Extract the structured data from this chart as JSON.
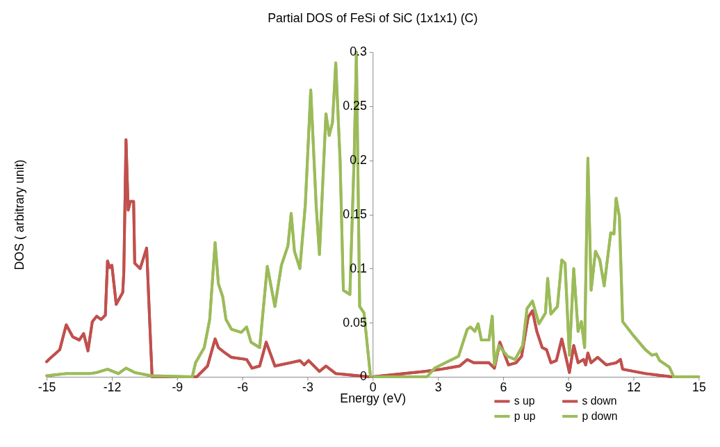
{
  "chart_data": {
    "type": "line",
    "title": "Partial DOS of FeSi of SiC (1x1x1) (C)",
    "xlabel": "Energy (eV)",
    "ylabel": "DOS ( arbitrary unit)",
    "xlim": [
      -15,
      15
    ],
    "xticks": [
      -15,
      -12,
      -9,
      -6,
      -3,
      0,
      3,
      6,
      9,
      12,
      15
    ],
    "ylim": [
      0,
      0.3
    ],
    "yticks": [
      0,
      0.05,
      0.1,
      0.15,
      0.2,
      0.25,
      0.3
    ],
    "grid": false,
    "legend": "bottom right",
    "marker": "none",
    "line_style": "solid",
    "series": [
      {
        "name": "s up",
        "color": "#c0504d",
        "x": [
          -15,
          -14.9,
          -14.4,
          -14.1,
          -13.8,
          -13.5,
          -13.3,
          -13.1,
          -12.9,
          -12.7,
          -12.5,
          -12.3,
          -12.2,
          -12.1,
          -12.0,
          -11.8,
          -11.5,
          -11.45,
          -11.35,
          -11.25,
          -11.15,
          -11.0,
          -10.95,
          -10.7,
          -10.4,
          -10.3,
          -10.15,
          -8.1,
          -7.6,
          -7.25,
          -7.1,
          -6.85,
          -6.5,
          -5.8,
          -5.55,
          -5.2,
          -4.9,
          -4.5,
          -3.8,
          -3.35,
          -3.15,
          -2.95,
          -2.45,
          -2.15,
          -1.7,
          -1.15,
          -0.2,
          0,
          2.4,
          3.15,
          4.0,
          4.35,
          4.65,
          5.05,
          5.35,
          5.6,
          5.85,
          6.25,
          6.6,
          6.85,
          7.15,
          7.35,
          7.55,
          7.8,
          8.0,
          8.2,
          8.45,
          8.7,
          9.05,
          9.25,
          9.45,
          9.7,
          9.8,
          9.9,
          10.05,
          10.35,
          10.75,
          11.2,
          11.4,
          11.5,
          12.55,
          13.75
        ],
        "values": [
          0.014,
          0.016,
          0.025,
          0.048,
          0.037,
          0.034,
          0.04,
          0.024,
          0.051,
          0.056,
          0.053,
          0.057,
          0.107,
          0.101,
          0.103,
          0.067,
          0.078,
          0.097,
          0.219,
          0.154,
          0.162,
          0.162,
          0.105,
          0.1,
          0.119,
          0.07,
          0,
          0,
          0.01,
          0.035,
          0.027,
          0.023,
          0.018,
          0.016,
          0.008,
          0.01,
          0.032,
          0.01,
          0.013,
          0.015,
          0.011,
          0.015,
          0.005,
          0.01,
          0.003,
          0.002,
          0,
          0,
          0.005,
          0.007,
          0.01,
          0.016,
          0.013,
          0.013,
          0.013,
          0.008,
          0.032,
          0.011,
          0.013,
          0.019,
          0.055,
          0.061,
          0.042,
          0.027,
          0.025,
          0.013,
          0.015,
          0.035,
          0.004,
          0.029,
          0.013,
          0.016,
          0.011,
          0.022,
          0.013,
          0.018,
          0.011,
          0.013,
          0.016,
          0.007,
          0.003,
          0
        ]
      },
      {
        "name": "s down",
        "color": "#c0504d",
        "x": [
          -15,
          -14.9,
          -14.4,
          -14.1,
          -13.8,
          -13.5,
          -13.3,
          -13.1,
          -12.9,
          -12.7,
          -12.5,
          -12.3,
          -12.2,
          -12.1,
          -12.0,
          -11.8,
          -11.5,
          -11.45,
          -11.35,
          -11.25,
          -11.15,
          -11.0,
          -10.95,
          -10.7,
          -10.4,
          -10.3,
          -10.15,
          -8.1,
          -7.6,
          -7.25,
          -7.1,
          -6.85,
          -6.5,
          -5.8,
          -5.55,
          -5.2,
          -4.9,
          -4.5,
          -3.8,
          -3.35,
          -3.15,
          -2.95,
          -2.45,
          -2.15,
          -1.7,
          -1.15,
          -0.2,
          0,
          2.4,
          3.15,
          4.0,
          4.35,
          4.65,
          5.05,
          5.35,
          5.6,
          5.85,
          6.25,
          6.6,
          6.85,
          7.15,
          7.35,
          7.55,
          7.8,
          8.0,
          8.2,
          8.45,
          8.7,
          9.05,
          9.25,
          9.45,
          9.7,
          9.8,
          9.9,
          10.05,
          10.35,
          10.75,
          11.2,
          11.4,
          11.5,
          12.55,
          13.75
        ],
        "values": [
          0.014,
          0.016,
          0.025,
          0.048,
          0.037,
          0.034,
          0.04,
          0.024,
          0.051,
          0.056,
          0.053,
          0.057,
          0.107,
          0.101,
          0.103,
          0.067,
          0.078,
          0.097,
          0.219,
          0.154,
          0.162,
          0.162,
          0.105,
          0.1,
          0.119,
          0.07,
          0,
          0,
          0.01,
          0.035,
          0.027,
          0.023,
          0.018,
          0.016,
          0.008,
          0.01,
          0.032,
          0.01,
          0.013,
          0.015,
          0.011,
          0.015,
          0.005,
          0.01,
          0.003,
          0.002,
          0,
          0,
          0.005,
          0.007,
          0.01,
          0.016,
          0.013,
          0.013,
          0.013,
          0.008,
          0.032,
          0.011,
          0.013,
          0.019,
          0.055,
          0.061,
          0.042,
          0.027,
          0.025,
          0.013,
          0.015,
          0.035,
          0.004,
          0.029,
          0.013,
          0.016,
          0.011,
          0.022,
          0.013,
          0.018,
          0.011,
          0.013,
          0.016,
          0.007,
          0.003,
          0
        ]
      },
      {
        "name": "p up",
        "color": "#9bbb59",
        "x": [
          -15,
          -14.1,
          -13.0,
          -12.7,
          -12.2,
          -11.7,
          -11.35,
          -10.95,
          -10.2,
          -8.3,
          -8.15,
          -7.75,
          -7.5,
          -7.25,
          -7.1,
          -6.9,
          -6.75,
          -6.5,
          -6.05,
          -5.8,
          -5.6,
          -5.2,
          -4.85,
          -4.5,
          -4.2,
          -3.9,
          -3.75,
          -3.6,
          -3.35,
          -3.1,
          -2.85,
          -2.6,
          -2.45,
          -2.15,
          -2.0,
          -1.85,
          -1.7,
          -1.5,
          -1.35,
          -1.05,
          -0.85,
          -0.75,
          -0.6,
          -0.4,
          -0.1,
          2.5,
          2.85,
          3.95,
          4.35,
          4.5,
          4.7,
          4.85,
          5.0,
          5.35,
          5.5,
          5.6,
          5.8,
          6.2,
          6.55,
          6.9,
          7.1,
          7.35,
          7.65,
          7.95,
          8.05,
          8.2,
          8.5,
          8.7,
          8.85,
          9.05,
          9.25,
          9.45,
          9.6,
          9.75,
          9.9,
          10.05,
          10.25,
          10.45,
          10.65,
          10.95,
          11.1,
          11.2,
          11.35,
          11.5,
          12.0,
          12.55,
          12.85,
          13.05,
          13.2,
          13.65,
          13.85,
          15
        ],
        "values": [
          0.001,
          0.003,
          0.003,
          0.004,
          0.007,
          0.003,
          0.008,
          0.004,
          0.001,
          0,
          0.013,
          0.027,
          0.053,
          0.124,
          0.086,
          0.074,
          0.053,
          0.044,
          0.041,
          0.046,
          0.032,
          0.027,
          0.102,
          0.065,
          0.103,
          0.121,
          0.151,
          0.116,
          0.1,
          0.159,
          0.265,
          0.158,
          0.113,
          0.243,
          0.223,
          0.235,
          0.29,
          0.2,
          0.08,
          0.076,
          0.205,
          0.3,
          0.065,
          0.059,
          0,
          0,
          0.008,
          0.019,
          0.044,
          0.046,
          0.042,
          0.049,
          0.034,
          0.034,
          0.056,
          0.011,
          0.029,
          0.019,
          0.016,
          0.029,
          0.063,
          0.07,
          0.049,
          0.059,
          0.091,
          0.058,
          0.065,
          0.108,
          0.105,
          0.02,
          0.1,
          0.042,
          0.051,
          0.027,
          0.202,
          0.08,
          0.116,
          0.108,
          0.084,
          0.133,
          0.132,
          0.165,
          0.148,
          0.051,
          0.038,
          0.025,
          0.02,
          0.021,
          0.015,
          0.009,
          0,
          0
        ]
      },
      {
        "name": "p down",
        "color": "#9bbb59",
        "x": [
          -15,
          -14.1,
          -13.0,
          -12.7,
          -12.2,
          -11.7,
          -11.35,
          -10.95,
          -10.2,
          -8.3,
          -8.15,
          -7.75,
          -7.5,
          -7.25,
          -7.1,
          -6.9,
          -6.75,
          -6.5,
          -6.05,
          -5.8,
          -5.6,
          -5.2,
          -4.85,
          -4.5,
          -4.2,
          -3.9,
          -3.75,
          -3.6,
          -3.35,
          -3.1,
          -2.85,
          -2.6,
          -2.45,
          -2.15,
          -2.0,
          -1.85,
          -1.7,
          -1.5,
          -1.35,
          -1.05,
          -0.85,
          -0.75,
          -0.6,
          -0.4,
          -0.1,
          2.5,
          2.85,
          3.95,
          4.35,
          4.5,
          4.7,
          4.85,
          5.0,
          5.35,
          5.5,
          5.6,
          5.8,
          6.2,
          6.55,
          6.9,
          7.1,
          7.35,
          7.65,
          7.95,
          8.05,
          8.2,
          8.5,
          8.7,
          8.85,
          9.05,
          9.25,
          9.45,
          9.6,
          9.75,
          9.9,
          10.05,
          10.25,
          10.45,
          10.65,
          10.95,
          11.1,
          11.2,
          11.35,
          11.5,
          12.0,
          12.55,
          12.85,
          13.05,
          13.2,
          13.65,
          13.85,
          15
        ],
        "values": [
          0.001,
          0.003,
          0.003,
          0.004,
          0.007,
          0.003,
          0.008,
          0.004,
          0.001,
          0,
          0.013,
          0.027,
          0.053,
          0.124,
          0.086,
          0.074,
          0.053,
          0.044,
          0.041,
          0.046,
          0.032,
          0.027,
          0.102,
          0.065,
          0.103,
          0.121,
          0.151,
          0.116,
          0.1,
          0.159,
          0.265,
          0.158,
          0.113,
          0.243,
          0.223,
          0.235,
          0.29,
          0.2,
          0.08,
          0.076,
          0.205,
          0.3,
          0.065,
          0.059,
          0,
          0,
          0.008,
          0.019,
          0.044,
          0.046,
          0.042,
          0.049,
          0.034,
          0.034,
          0.056,
          0.011,
          0.029,
          0.019,
          0.016,
          0.029,
          0.063,
          0.07,
          0.049,
          0.059,
          0.091,
          0.058,
          0.065,
          0.108,
          0.105,
          0.02,
          0.1,
          0.042,
          0.051,
          0.027,
          0.202,
          0.08,
          0.116,
          0.108,
          0.084,
          0.133,
          0.132,
          0.165,
          0.148,
          0.051,
          0.038,
          0.025,
          0.02,
          0.021,
          0.015,
          0.009,
          0,
          0
        ]
      }
    ]
  }
}
